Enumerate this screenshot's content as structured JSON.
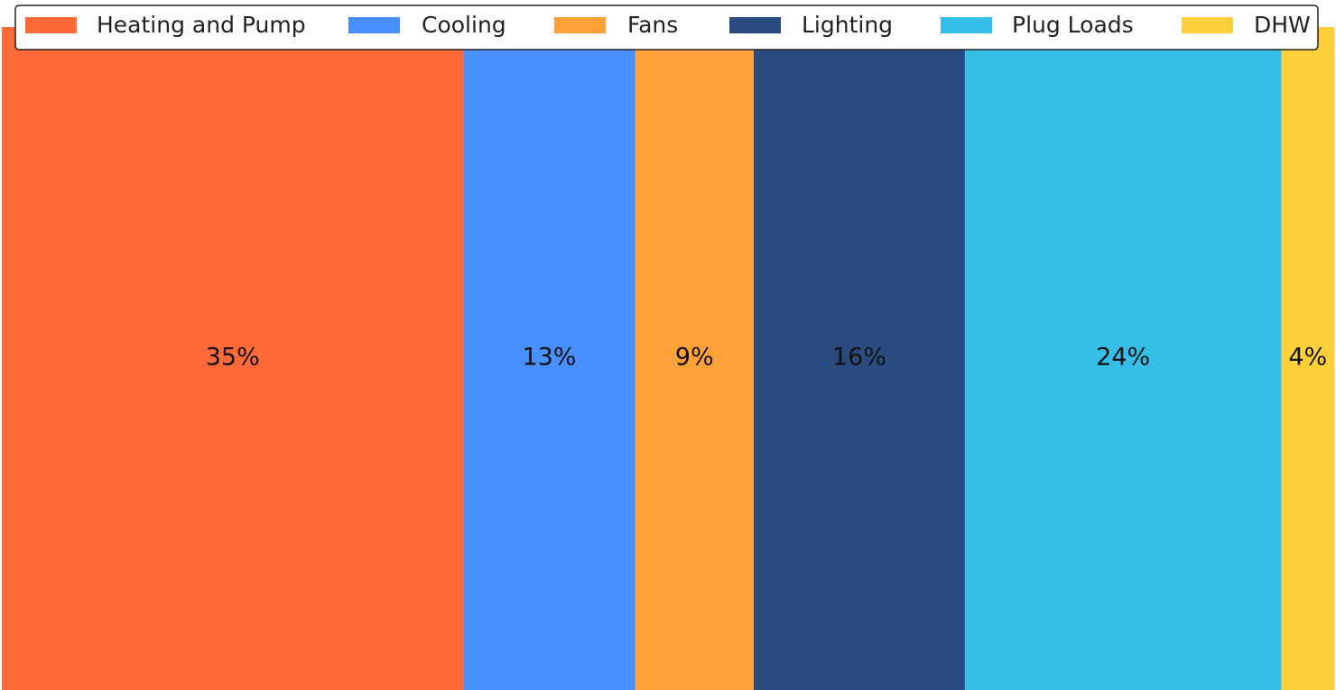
{
  "chart_data": {
    "type": "bar",
    "stacked_horizontal_percent": true,
    "categories": [
      "Heating and Pump",
      "Cooling",
      "Fans",
      "Lighting",
      "Plug Loads",
      "DHW"
    ],
    "values": [
      35,
      13,
      9,
      16,
      24,
      4
    ],
    "data_labels": [
      "35%",
      "13%",
      "9%",
      "16%",
      "24%",
      "4%"
    ],
    "colors": [
      "#FF6A38",
      "#488FFF",
      "#FFA13B",
      "#2A4B7F",
      "#35BEE6",
      "#FFCE3B"
    ],
    "title": "",
    "xlabel": "",
    "ylabel": "",
    "grid": false,
    "legend_placement": "top"
  }
}
